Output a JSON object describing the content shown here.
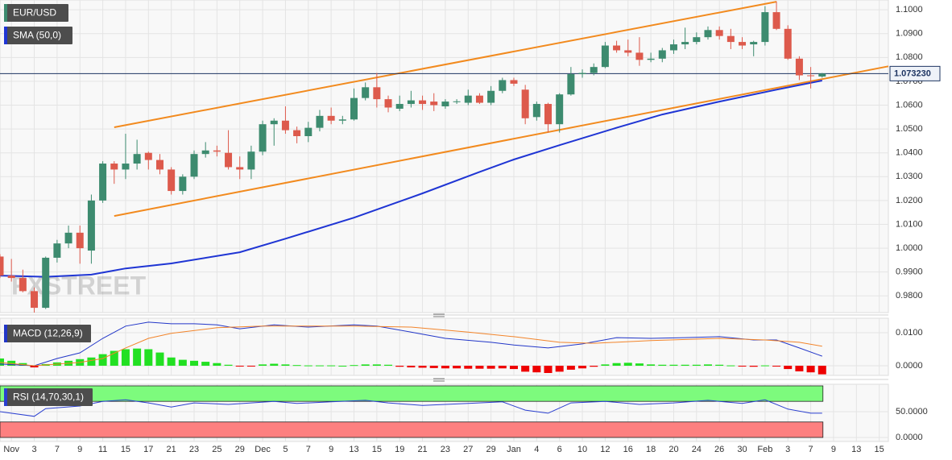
{
  "chart_data": [
    {
      "type": "candlestick",
      "title": "EUR/USD",
      "watermark": "FXSTREET",
      "up_color": "#3d8b6f",
      "down_color": "#dd5a4c",
      "xlim": [
        0,
        77.8
      ],
      "ylim": [
        0.973,
        1.1041
      ],
      "yticks": [
        {
          "value": 0.98,
          "label": "0.9800"
        },
        {
          "value": 0.99,
          "label": "0.9900"
        },
        {
          "value": 1.0,
          "label": "1.0000"
        },
        {
          "value": 1.01,
          "label": "1.0100"
        },
        {
          "value": 1.02,
          "label": "1.0200"
        },
        {
          "value": 1.03,
          "label": "1.0300"
        },
        {
          "value": 1.04,
          "label": "1.0400"
        },
        {
          "value": 1.05,
          "label": "1.0500"
        },
        {
          "value": 1.06,
          "label": "1.0600"
        },
        {
          "value": 1.07,
          "label": "1.0700"
        },
        {
          "value": 1.08,
          "label": "1.0800"
        },
        {
          "value": 1.09,
          "label": "1.0900"
        },
        {
          "value": 1.1,
          "label": "1.1000"
        }
      ],
      "xticks": [
        {
          "value": 1,
          "label": "Nov"
        },
        3,
        {
          "value": 5,
          "label": "7"
        },
        {
          "value": 7,
          "label": "9"
        },
        {
          "value": 9,
          "label": "11"
        },
        {
          "value": 11,
          "label": "15"
        },
        {
          "value": 13,
          "label": "17"
        },
        {
          "value": 15,
          "label": "21"
        },
        {
          "value": 17,
          "label": "23"
        },
        {
          "value": 19,
          "label": "25"
        },
        {
          "value": 21,
          "label": "29"
        },
        {
          "value": 23,
          "label": "Dec"
        },
        {
          "value": 25,
          "label": "5"
        },
        {
          "value": 27,
          "label": "7"
        },
        {
          "value": 29,
          "label": "9"
        },
        {
          "value": 31,
          "label": "13"
        },
        {
          "value": 33,
          "label": "15"
        },
        {
          "value": 35,
          "label": "19"
        },
        {
          "value": 37,
          "label": "21"
        },
        {
          "value": 39,
          "label": "23"
        },
        {
          "value": 41,
          "label": "27"
        },
        {
          "value": 43,
          "label": "29"
        },
        {
          "value": 45,
          "label": "Jan"
        },
        {
          "value": 47,
          "label": "4"
        },
        {
          "value": 49,
          "label": "6"
        },
        {
          "value": 51,
          "label": "10"
        },
        {
          "value": 53,
          "label": "12"
        },
        {
          "value": 55,
          "label": "16"
        },
        {
          "value": 57,
          "label": "18"
        },
        {
          "value": 59,
          "label": "20"
        },
        {
          "value": 61,
          "label": "24"
        },
        {
          "value": 63,
          "label": "26"
        },
        {
          "value": 65,
          "label": "30"
        },
        {
          "value": 67,
          "label": "Feb"
        },
        {
          "value": 69,
          "label": "3"
        },
        {
          "value": 71,
          "label": "7"
        },
        {
          "value": 73,
          "label": "9"
        },
        {
          "value": 75,
          "label": "13"
        },
        {
          "value": 77,
          "label": "15"
        }
      ],
      "x": [
        0,
        1,
        2,
        3,
        4,
        5,
        6,
        7,
        8,
        9,
        10,
        11,
        12,
        13,
        14,
        15,
        16,
        17,
        18,
        19,
        20,
        21,
        22,
        23,
        24,
        25,
        26,
        27,
        28,
        29,
        30,
        31,
        32,
        33,
        34,
        35,
        36,
        37,
        38,
        39,
        40,
        41,
        42,
        43,
        44,
        45,
        46,
        47,
        48,
        49,
        50,
        51,
        52,
        53,
        54,
        55,
        56,
        57,
        58,
        59,
        60,
        61,
        62,
        63,
        64,
        65,
        66,
        67,
        68,
        69,
        70,
        71,
        72
      ],
      "open": [
        0.9965,
        0.9885,
        0.9875,
        0.982,
        0.975,
        0.996,
        1.002,
        1.0065,
        0.999,
        1.02,
        1.0355,
        1.033,
        1.0355,
        1.04,
        1.037,
        1.033,
        1.024,
        1.03,
        1.0395,
        1.041,
        1.04,
        1.034,
        1.033,
        1.0405,
        1.052,
        1.0535,
        1.0495,
        1.047,
        1.0505,
        1.0555,
        1.0535,
        1.054,
        1.063,
        1.0675,
        1.0625,
        1.0585,
        1.0605,
        1.062,
        1.0615,
        1.0595,
        1.0615,
        1.061,
        1.064,
        1.061,
        1.066,
        1.0705,
        1.0665,
        1.055,
        1.0605,
        1.052,
        1.0645,
        1.073,
        1.0735,
        1.076,
        1.085,
        1.083,
        1.082,
        1.079,
        1.0795,
        1.083,
        1.0855,
        1.0865,
        1.0885,
        1.0915,
        1.089,
        1.0865,
        1.0855,
        1.0865,
        1.099,
        1.092,
        1.0795,
        1.0725,
        1.072
      ],
      "high": [
        0.9975,
        0.9955,
        0.991,
        0.9835,
        0.9965,
        1.0035,
        1.0095,
        1.0095,
        1.0225,
        1.0365,
        1.0365,
        1.048,
        1.0455,
        1.0405,
        1.0395,
        1.034,
        1.031,
        1.041,
        1.0445,
        1.043,
        1.0495,
        1.0385,
        1.043,
        1.0535,
        1.0545,
        1.0595,
        1.051,
        1.053,
        1.058,
        1.059,
        1.0555,
        1.067,
        1.0695,
        1.0735,
        1.064,
        1.064,
        1.066,
        1.064,
        1.065,
        1.0625,
        1.0625,
        1.0665,
        1.065,
        1.068,
        1.0715,
        1.0715,
        1.0685,
        1.0615,
        1.061,
        1.065,
        1.076,
        1.075,
        1.0775,
        1.0865,
        1.087,
        1.0875,
        1.0885,
        1.082,
        1.084,
        1.0875,
        1.0925,
        1.0905,
        1.093,
        1.093,
        1.092,
        1.0885,
        1.087,
        1.1015,
        1.1035,
        1.0935,
        1.0805,
        1.076,
        1.0735
      ],
      "low": [
        0.9875,
        0.986,
        0.9815,
        0.973,
        0.9745,
        0.994,
        1.0,
        0.9935,
        0.9935,
        1.019,
        1.027,
        1.029,
        1.033,
        1.033,
        1.031,
        1.0225,
        1.0225,
        1.029,
        1.038,
        1.0385,
        1.033,
        1.029,
        1.029,
        1.039,
        1.043,
        1.048,
        1.044,
        1.0445,
        1.049,
        1.052,
        1.052,
        1.0535,
        1.062,
        1.059,
        1.057,
        1.0575,
        1.059,
        1.058,
        1.0575,
        1.0585,
        1.0605,
        1.06,
        1.0605,
        1.06,
        1.065,
        1.068,
        1.052,
        1.0535,
        1.0485,
        1.0485,
        1.064,
        1.0715,
        1.0725,
        1.0755,
        1.082,
        1.0805,
        1.0765,
        1.078,
        1.078,
        1.0815,
        1.0835,
        1.0855,
        1.0875,
        1.0875,
        1.0835,
        1.0835,
        1.0805,
        1.085,
        1.0915,
        1.079,
        1.0705,
        1.067,
        1.0715
      ],
      "close": [
        0.9885,
        0.9875,
        0.982,
        0.975,
        0.996,
        1.002,
        1.0065,
        1.0,
        1.02,
        1.0355,
        1.033,
        1.0355,
        1.0395,
        1.037,
        1.033,
        1.024,
        1.03,
        1.0395,
        1.041,
        1.0405,
        1.034,
        1.033,
        1.0405,
        1.052,
        1.0535,
        1.0495,
        1.047,
        1.0505,
        1.0555,
        1.0535,
        1.054,
        1.063,
        1.0675,
        1.0625,
        1.059,
        1.0605,
        1.062,
        1.0605,
        1.06,
        1.0615,
        1.0616,
        1.064,
        1.061,
        1.066,
        1.0705,
        1.069,
        1.0545,
        1.0605,
        1.052,
        1.0645,
        1.073,
        1.0735,
        1.076,
        1.085,
        1.083,
        1.082,
        1.079,
        1.0795,
        1.083,
        1.0855,
        1.0865,
        1.0885,
        1.0915,
        1.089,
        1.0865,
        1.085,
        1.0865,
        1.099,
        1.092,
        1.0795,
        1.0725,
        1.0722,
        1.07323
      ],
      "last_price": {
        "value": 1.07323,
        "label": "1.073230",
        "color": "#1d3461"
      },
      "overlays": [
        {
          "name": "SMA (50,0)",
          "color": "#1f35d4",
          "x": [
            0,
            4,
            8,
            11,
            15,
            21,
            25,
            31,
            37,
            42,
            45,
            49,
            54,
            58,
            63,
            68,
            72
          ],
          "values": [
            0.9885,
            0.988,
            0.9889,
            0.9915,
            0.9936,
            0.9983,
            1.004,
            1.0128,
            1.023,
            1.032,
            1.0372,
            1.0432,
            1.0505,
            1.0561,
            1.0615,
            1.0665,
            1.0703
          ]
        }
      ],
      "channels": [
        {
          "color": "#f28a1e",
          "x": [
            10,
            68
          ],
          "values": [
            1.0507,
            1.1034
          ]
        },
        {
          "color": "#f28a1e",
          "x": [
            10,
            77.8
          ],
          "values": [
            1.0135,
            1.0763
          ]
        }
      ]
    },
    {
      "type": "macd",
      "title": "MACD (12,26,9)",
      "xlim": [
        0,
        77.8
      ],
      "ylim": [
        -0.00293,
        0.01439
      ],
      "yticks": [
        {
          "value": 0,
          "label": "0.0000"
        },
        {
          "value": 0.01,
          "label": "0.0100"
        }
      ],
      "lines": [
        {
          "color": "#2236c8",
          "x": [
            0,
            3,
            5,
            7,
            9,
            11,
            13,
            15,
            17,
            19,
            21,
            24,
            27,
            31,
            33,
            36,
            39,
            43,
            45,
            48,
            51,
            54,
            57,
            60,
            63,
            66,
            68,
            70,
            72
          ],
          "values": [
            0.0005,
            0,
            0.0022,
            0.0039,
            0.0083,
            0.012,
            0.0132,
            0.0127,
            0.0127,
            0.0124,
            0.0112,
            0.0124,
            0.0117,
            0.0124,
            0.012,
            0.0102,
            0.0083,
            0.0071,
            0.0063,
            0.0054,
            0.0066,
            0.0085,
            0.0083,
            0.0085,
            0.0088,
            0.0078,
            0.0078,
            0.0054,
            0.0029
          ]
        },
        {
          "color": "#f2842a",
          "x": [
            0,
            3,
            7,
            9,
            11,
            13,
            15,
            19,
            23,
            27,
            31,
            36,
            41,
            45,
            49,
            52,
            57,
            63,
            67,
            70,
            72
          ],
          "values": [
            0.001,
            0,
            0.001,
            0.0022,
            0.0054,
            0.0083,
            0.0098,
            0.0115,
            0.012,
            0.012,
            0.012,
            0.0117,
            0.0102,
            0.0088,
            0.0071,
            0.0068,
            0.0076,
            0.0083,
            0.0078,
            0.0071,
            0.0059
          ]
        }
      ],
      "histogram": {
        "up_color": "#22e022",
        "down_color": "#ee0000",
        "values": [
          0.0022,
          0.0015,
          0.0008,
          -0.0005,
          0.0005,
          0.001,
          0.0015,
          0.002,
          0.0025,
          0.0035,
          0.0045,
          0.005,
          0.0052,
          0.005,
          0.004,
          0.0025,
          0.0018,
          0.0015,
          0.0012,
          0.0008,
          0.0003,
          -0.0002,
          -0.0001,
          0.0004,
          0.0006,
          0.0004,
          0.0002,
          0.0001,
          0.0001,
          0.0001,
          0,
          0.0002,
          0.0004,
          0.0004,
          0.0003,
          -0.0003,
          -0.0005,
          -0.0006,
          -0.0007,
          -0.0008,
          -0.0008,
          -0.0009,
          -0.0009,
          -0.0009,
          -0.0008,
          -0.001,
          -0.0018,
          -0.002,
          -0.0022,
          -0.0018,
          -0.0012,
          -0.0008,
          -0.0003,
          0.0004,
          0.0008,
          0.0009,
          0.0007,
          0.0004,
          0.0003,
          0.0003,
          0.0003,
          0.0003,
          0.0004,
          0.0003,
          0.0001,
          -0.0002,
          -0.0003,
          0.0001,
          -0.0002,
          -0.001,
          -0.0017,
          -0.002,
          -0.0026
        ]
      }
    },
    {
      "type": "rsi",
      "title": "RSI (14,70,30,1)",
      "xlim": [
        0,
        77.8
      ],
      "ylim": [
        -7.8,
        103.1
      ],
      "yticks": [
        {
          "value": 0,
          "label": "0.0000"
        },
        {
          "value": 50,
          "label": "50.0000"
        }
      ],
      "bands": [
        {
          "from": 70,
          "to": 100,
          "color": "#7dfb7d"
        },
        {
          "from": 0,
          "to": 30,
          "color": "#fd8080"
        }
      ],
      "line": {
        "color": "#2a3fd0",
        "x": [
          0,
          3,
          4,
          7,
          9,
          11,
          13,
          15,
          17,
          20,
          22,
          24,
          26,
          29,
          32,
          34,
          37,
          41,
          44,
          46,
          48,
          50,
          53,
          56,
          59,
          62,
          65,
          67,
          69,
          71,
          72
        ],
        "values": [
          50,
          41,
          56,
          61,
          70,
          73,
          67,
          59,
          67,
          64,
          67,
          70,
          66,
          69,
          72,
          67,
          62,
          66,
          69,
          53,
          47,
          67,
          70,
          64,
          67,
          72,
          66,
          73,
          55,
          47,
          47
        ]
      }
    }
  ]
}
